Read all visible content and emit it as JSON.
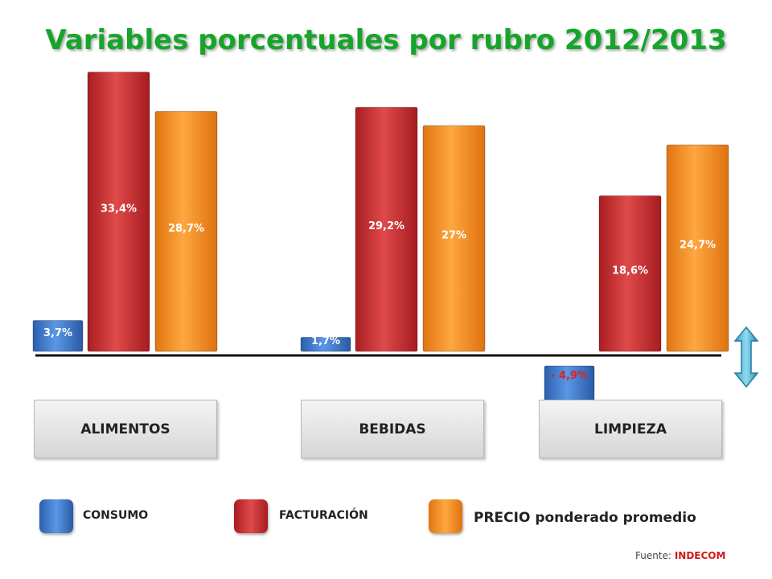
{
  "chart_data": {
    "type": "bar",
    "title": "Variables porcentuales por rubro 2012/2013",
    "categories": [
      "ALIMENTOS",
      "BEBIDAS",
      "LIMPIEZA"
    ],
    "series": [
      {
        "name": "CONSUMO",
        "color": "#3a78cf",
        "values": [
          3.7,
          1.7,
          -4.9
        ],
        "labels": [
          "3,7%",
          "1,7%",
          "- 4,9%"
        ]
      },
      {
        "name": "FACTURACIÓN",
        "color": "#c9282c",
        "values": [
          33.4,
          29.2,
          18.6
        ],
        "labels": [
          "33,4%",
          "29,2%",
          "18,6%"
        ]
      },
      {
        "name": "PRECIO ponderado promedio",
        "color": "#f28a1e",
        "values": [
          28.7,
          27,
          24.7
        ],
        "labels": [
          "28,7%",
          "27%",
          "24,7%"
        ]
      }
    ]
  },
  "legend": {
    "consumo": "CONSUMO",
    "facturacion": "FACTURACIÓN",
    "precio": "PRECIO ponderado promedio"
  },
  "source": {
    "prefix": "Fuente:",
    "name": "INDECOM"
  },
  "double_arrow_icon": "double-arrow-icon"
}
